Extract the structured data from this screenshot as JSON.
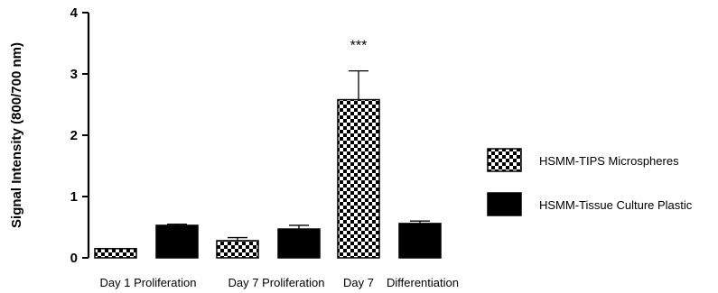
{
  "chart_data": {
    "type": "bar",
    "ylabel": "Signal Intensity (800/700 nm)",
    "ylim": [
      0,
      4
    ],
    "yticks": [
      "0",
      "1",
      "2",
      "3",
      "4"
    ],
    "grid": false,
    "legend_position": "right",
    "series": [
      {
        "name": "HSMM-TIPS Microspheres",
        "fill": "checkered"
      },
      {
        "name": "HSMM-Tissue Culture Plastic",
        "fill": "#000000"
      }
    ],
    "bars": [
      {
        "series": 0,
        "value": 0.15,
        "error": 0.0
      },
      {
        "series": 1,
        "value": 0.53,
        "error": 0.02
      },
      {
        "series": 0,
        "value": 0.28,
        "error": 0.05
      },
      {
        "series": 1,
        "value": 0.47,
        "error": 0.06
      },
      {
        "series": 0,
        "value": 2.58,
        "error": 0.47,
        "annotation": "***"
      },
      {
        "series": 1,
        "value": 0.56,
        "error": 0.04
      }
    ],
    "category_labels": [
      "Day 1 Proliferation",
      "Day 7 Proliferation",
      "Day 7",
      "Differentiation"
    ]
  }
}
